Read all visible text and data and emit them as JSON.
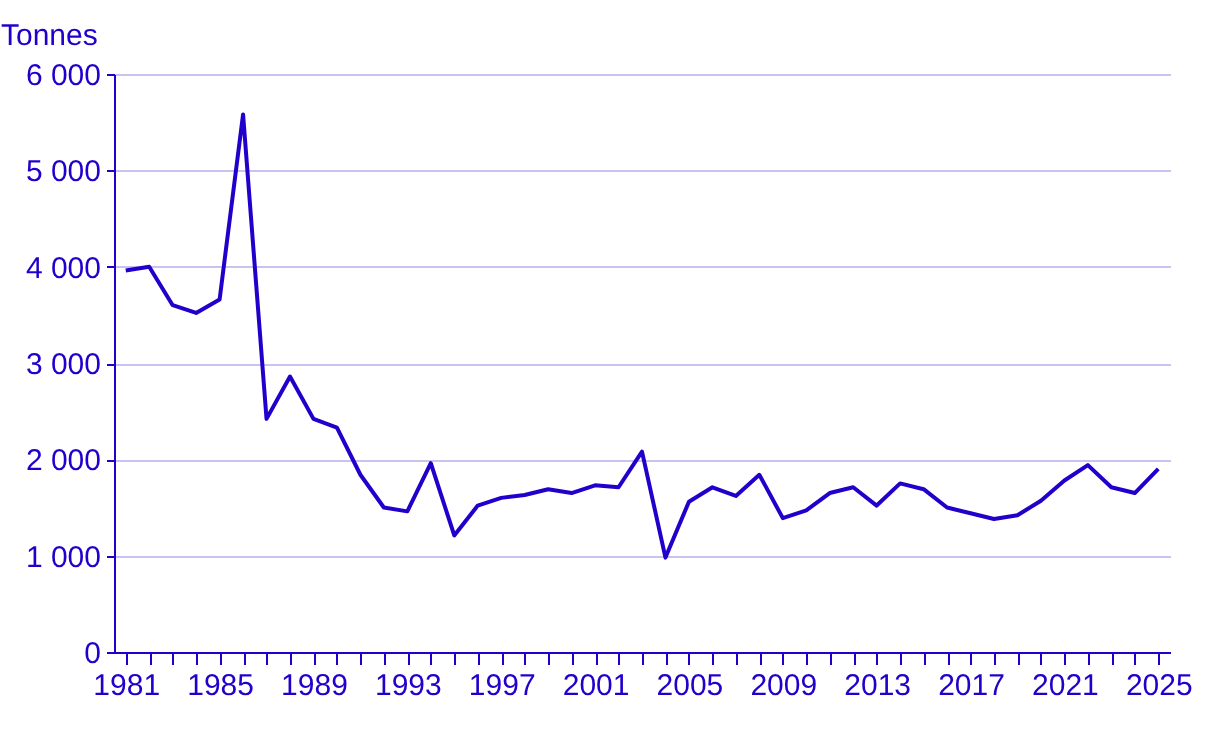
{
  "chart_data": {
    "type": "line",
    "ylabel": "Tonnes",
    "x": [
      1981,
      1982,
      1983,
      1984,
      1985,
      1986,
      1987,
      1988,
      1989,
      1990,
      1991,
      1992,
      1993,
      1994,
      1995,
      1996,
      1997,
      1998,
      1999,
      2000,
      2001,
      2002,
      2003,
      2004,
      2005,
      2006,
      2007,
      2008,
      2009,
      2010,
      2011,
      2012,
      2013,
      2014,
      2015,
      2016,
      2017,
      2018,
      2019,
      2020,
      2021,
      2022,
      2023,
      2024,
      2025
    ],
    "series": [
      {
        "color": "#2200cc",
        "values": [
          3960,
          4000,
          3600,
          3520,
          3660,
          5580,
          2420,
          2860,
          2420,
          2330,
          1840,
          1500,
          1460,
          1960,
          1210,
          1520,
          1600,
          1630,
          1690,
          1650,
          1730,
          1710,
          2080,
          980,
          1560,
          1710,
          1620,
          1840,
          1390,
          1470,
          1650,
          1710,
          1520,
          1750,
          1690,
          1500,
          1440,
          1380,
          1420,
          1570,
          1780,
          1940,
          1710,
          1650,
          1900
        ]
      }
    ],
    "xlim": [
      1980.5,
      2025.5
    ],
    "xticks": [
      1981,
      {
        "value": 1982,
        "label": null
      },
      {
        "value": 1983,
        "label": null
      },
      {
        "value": 1984,
        "label": null
      },
      1985,
      {
        "value": 1986,
        "label": null
      },
      {
        "value": 1987,
        "label": null
      },
      {
        "value": 1988,
        "label": null
      },
      1989,
      {
        "value": 1990,
        "label": null
      },
      {
        "value": 1991,
        "label": null
      },
      {
        "value": 1992,
        "label": null
      },
      1993,
      {
        "value": 1994,
        "label": null
      },
      {
        "value": 1995,
        "label": null
      },
      {
        "value": 1996,
        "label": null
      },
      1997,
      {
        "value": 1998,
        "label": null
      },
      {
        "value": 1999,
        "label": null
      },
      {
        "value": 2000,
        "label": null
      },
      2001,
      {
        "value": 2002,
        "label": null
      },
      {
        "value": 2003,
        "label": null
      },
      {
        "value": 2004,
        "label": null
      },
      2005,
      {
        "value": 2006,
        "label": null
      },
      {
        "value": 2007,
        "label": null
      },
      {
        "value": 2008,
        "label": null
      },
      2009,
      {
        "value": 2010,
        "label": null
      },
      {
        "value": 2011,
        "label": null
      },
      {
        "value": 2012,
        "label": null
      },
      2013,
      {
        "value": 2014,
        "label": null
      },
      {
        "value": 2015,
        "label": null
      },
      {
        "value": 2016,
        "label": null
      },
      2017,
      {
        "value": 2018,
        "label": null
      },
      {
        "value": 2019,
        "label": null
      },
      {
        "value": 2020,
        "label": null
      },
      2021,
      {
        "value": 2022,
        "label": null
      },
      {
        "value": 2023,
        "label": null
      },
      {
        "value": 2024,
        "label": null
      },
      2025
    ],
    "ylim": [
      0,
      6000
    ],
    "yticks": [
      0,
      {
        "value": 1000,
        "label": "1 000"
      },
      {
        "value": 2000,
        "label": "2 000"
      },
      {
        "value": 3000,
        "label": "3 000"
      },
      {
        "value": 4000,
        "label": "4 000"
      },
      {
        "value": 5000,
        "label": "5 000"
      },
      {
        "value": 6000,
        "label": "6 000"
      }
    ],
    "grid": "y",
    "legend": false,
    "marker": "none",
    "line_style": "solid"
  }
}
